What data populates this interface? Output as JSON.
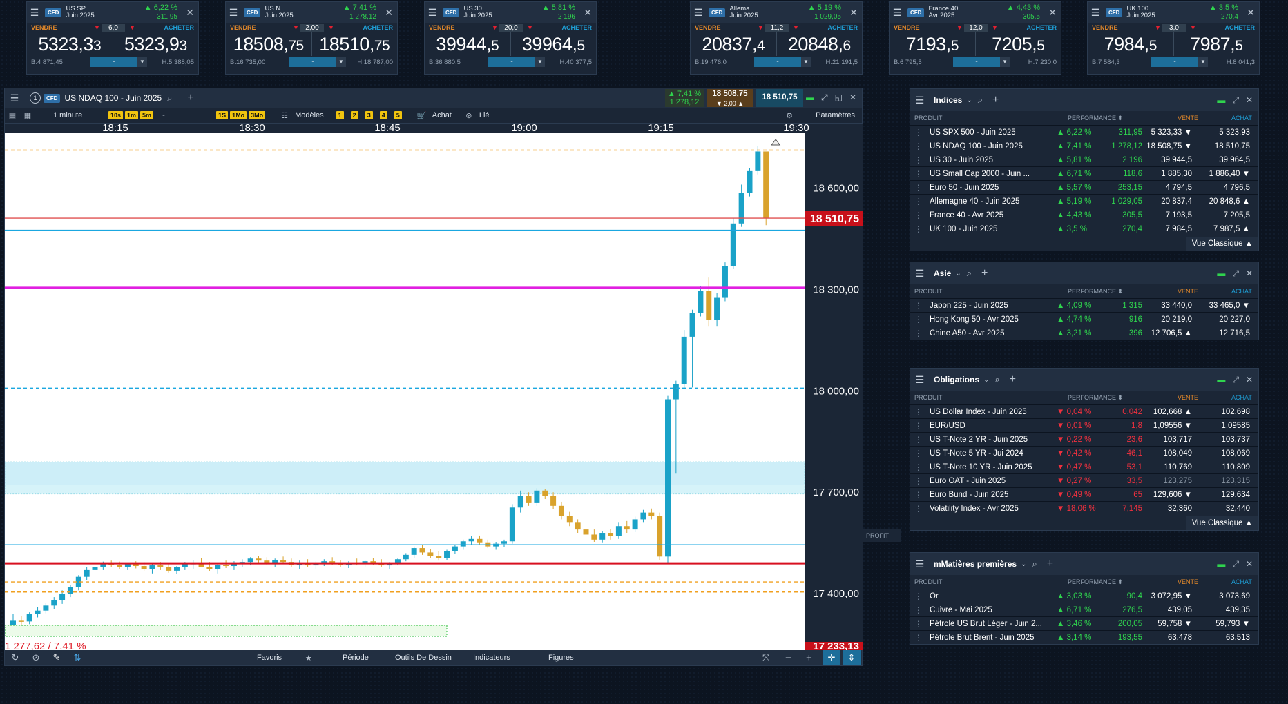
{
  "tiles": [
    {
      "name1": "US SP...",
      "name2": "Juin 2025",
      "pct": "▲ 6,22 %",
      "pts": "311,95",
      "spread": "6,0",
      "sell_main": "5323,3",
      "sell_small": "3",
      "buy_main": "5323,9",
      "buy_small": "3",
      "low": "B:4 871,45",
      "high": "H:5 388,05"
    },
    {
      "name1": "US N...",
      "name2": "Juin 2025",
      "pct": "▲ 7,41 %",
      "pts": "1 278,12",
      "spread": "2,00",
      "sell_main": "18508,",
      "sell_small": "75",
      "buy_main": "18510,",
      "buy_small": "75",
      "low": "B:16 735,00",
      "high": "H:18 787,00"
    },
    {
      "name1": "US 30",
      "name2": "Juin 2025",
      "pct": "▲ 5,81 %",
      "pts": "2 196",
      "spread": "20,0",
      "sell_main": "39944,",
      "sell_small": "5",
      "buy_main": "39964,",
      "buy_small": "5",
      "low": "B:36 880,5",
      "high": "H:40 377,5"
    },
    {
      "name1": "Allema...",
      "name2": "Juin 2025",
      "pct": "▲ 5,19 %",
      "pts": "1 029,05",
      "spread": "11,2",
      "sell_main": "20837,",
      "sell_small": "4",
      "buy_main": "20848,",
      "buy_small": "6",
      "low": "B:19 476,0",
      "high": "H:21 191,5"
    },
    {
      "name1": "France 40",
      "name2": "Avr 2025",
      "pct": "▲ 4,43 %",
      "pts": "305,5",
      "spread": "12,0",
      "sell_main": "7193,",
      "sell_small": "5",
      "buy_main": "7205,",
      "buy_small": "5",
      "low": "B:6 795,5",
      "high": "H:7 230,0"
    },
    {
      "name1": "UK 100",
      "name2": "Juin 2025",
      "pct": "▲ 3,5 %",
      "pts": "270,4",
      "spread": "3,0",
      "sell_main": "7984,",
      "sell_small": "5",
      "buy_main": "7987,",
      "buy_small": "5",
      "low": "B:7 584,3",
      "high": "H:8 041,3"
    }
  ],
  "labels": {
    "cfd": "CFD",
    "vendre": "VENDRE",
    "acheter": "ACHETER",
    "qty": "-",
    "produit": "PRODUIT",
    "performance": "PERFORMANCE",
    "vente": "VENTE",
    "achat": "ACHAT",
    "vue_classique": "Vue Classique",
    "profit": "PROFIT"
  },
  "chart": {
    "number": "1",
    "title": "US NDAQ 100 - Juin 2025",
    "perf_pct": "▲ 7,41 %",
    "perf_pts": "1 278,12",
    "sell": "18 508,75",
    "spread": "▼ 2,00 ▲",
    "buy": "18 510,75",
    "interval": "1 minute",
    "quick_intervals": [
      "10s",
      "1m",
      "5m"
    ],
    "range_buttons": [
      "1S",
      "1Mo",
      "3Mo"
    ],
    "modeles": "Modèles",
    "layouts": [
      "1",
      "2",
      "3",
      "4",
      "5"
    ],
    "achat": "Achat",
    "lie": "Lié",
    "parametres": "Paramètres",
    "footer": {
      "favoris": "Favoris",
      "periode": "Période",
      "outils": "Outils De Dessin",
      "indicateurs": "Indicateurs",
      "figures": "Figures"
    },
    "bottom_left_label": "1 277,62 / 7,41 %",
    "bottom_right_label": "17 233,13",
    "current_price_label": "18 510,75"
  },
  "chart_data": {
    "type": "candlestick",
    "x_ticks": [
      "18:15",
      "18:30",
      "18:45",
      "19:00",
      "19:15",
      "19:30"
    ],
    "y_ticks": [
      "18 600,00",
      "18 300,00",
      "18 000,00",
      "17 700,00",
      "17 400,00"
    ],
    "y_tick_values": [
      18600,
      18300,
      18000,
      17700,
      17400
    ],
    "ylim": [
      17233,
      18762
    ],
    "current_price": 18510.75,
    "levels": [
      {
        "value": 18712,
        "style": "dashed",
        "color": "#f0a020"
      },
      {
        "value": 18510.75,
        "style": "solid",
        "color": "#e05050"
      },
      {
        "value": 18475,
        "style": "solid",
        "color": "#1aa7e0"
      },
      {
        "value": 18305,
        "style": "thick",
        "color": "#e020e0"
      },
      {
        "value": 18008,
        "style": "dashed",
        "color": "#1aa7e0"
      },
      {
        "value": 17545,
        "style": "solid",
        "color": "#1aa7e0"
      },
      {
        "value": 17490,
        "style": "thick",
        "color": "#d81020"
      },
      {
        "value": 17435,
        "style": "dashed",
        "color": "#f0a020"
      },
      {
        "value": 17405,
        "style": "dashed",
        "color": "#f0a020"
      }
    ],
    "zones": [
      {
        "from": 17705,
        "to": 17790,
        "color": "#cdeef8"
      },
      {
        "from": 17695,
        "to": 17722,
        "color": "#d6f3f9"
      }
    ],
    "candles": [
      [
        17305,
        17340,
        17290,
        17320
      ],
      [
        17320,
        17335,
        17305,
        17318
      ],
      [
        17318,
        17345,
        17310,
        17340
      ],
      [
        17340,
        17360,
        17330,
        17350
      ],
      [
        17350,
        17372,
        17342,
        17365
      ],
      [
        17365,
        17390,
        17355,
        17380
      ],
      [
        17380,
        17410,
        17370,
        17400
      ],
      [
        17400,
        17425,
        17390,
        17420
      ],
      [
        17420,
        17455,
        17410,
        17450
      ],
      [
        17450,
        17478,
        17440,
        17470
      ],
      [
        17470,
        17490,
        17455,
        17480
      ],
      [
        17480,
        17495,
        17470,
        17488
      ],
      [
        17488,
        17498,
        17478,
        17485
      ],
      [
        17485,
        17495,
        17472,
        17480
      ],
      [
        17480,
        17492,
        17470,
        17488
      ],
      [
        17488,
        17496,
        17475,
        17482
      ],
      [
        17482,
        17494,
        17468,
        17472
      ],
      [
        17472,
        17488,
        17460,
        17484
      ],
      [
        17484,
        17494,
        17470,
        17478
      ],
      [
        17478,
        17490,
        17462,
        17468
      ],
      [
        17468,
        17482,
        17458,
        17478
      ],
      [
        17478,
        17494,
        17470,
        17488
      ],
      [
        17488,
        17500,
        17474,
        17490
      ],
      [
        17490,
        17505,
        17478,
        17480
      ],
      [
        17480,
        17494,
        17466,
        17472
      ],
      [
        17472,
        17488,
        17460,
        17486
      ],
      [
        17486,
        17498,
        17476,
        17482
      ],
      [
        17482,
        17496,
        17470,
        17490
      ],
      [
        17490,
        17502,
        17480,
        17494
      ],
      [
        17494,
        17508,
        17484,
        17504
      ],
      [
        17504,
        17512,
        17492,
        17498
      ],
      [
        17498,
        17508,
        17486,
        17492
      ],
      [
        17492,
        17504,
        17480,
        17500
      ],
      [
        17500,
        17510,
        17488,
        17494
      ],
      [
        17494,
        17504,
        17480,
        17486
      ],
      [
        17486,
        17498,
        17474,
        17492
      ],
      [
        17492,
        17502,
        17480,
        17484
      ],
      [
        17484,
        17496,
        17472,
        17490
      ],
      [
        17490,
        17502,
        17482,
        17496
      ],
      [
        17496,
        17508,
        17486,
        17490
      ],
      [
        17490,
        17500,
        17478,
        17486
      ],
      [
        17486,
        17496,
        17476,
        17492
      ],
      [
        17492,
        17504,
        17484,
        17488
      ],
      [
        17488,
        17500,
        17480,
        17496
      ],
      [
        17496,
        17506,
        17486,
        17492
      ],
      [
        17492,
        17502,
        17480,
        17484
      ],
      [
        17484,
        17494,
        17474,
        17490
      ],
      [
        17490,
        17504,
        17484,
        17502
      ],
      [
        17502,
        17520,
        17496,
        17515
      ],
      [
        17515,
        17540,
        17505,
        17535
      ],
      [
        17535,
        17545,
        17515,
        17522
      ],
      [
        17522,
        17532,
        17505,
        17512
      ],
      [
        17512,
        17525,
        17498,
        17505
      ],
      [
        17505,
        17530,
        17500,
        17525
      ],
      [
        17525,
        17545,
        17518,
        17540
      ],
      [
        17540,
        17560,
        17530,
        17555
      ],
      [
        17555,
        17570,
        17545,
        17562
      ],
      [
        17562,
        17572,
        17545,
        17550
      ],
      [
        17550,
        17560,
        17535,
        17540
      ],
      [
        17540,
        17552,
        17530,
        17548
      ],
      [
        17548,
        17560,
        17538,
        17555
      ],
      [
        17555,
        17665,
        17548,
        17655
      ],
      [
        17655,
        17705,
        17640,
        17690
      ],
      [
        17690,
        17700,
        17660,
        17668
      ],
      [
        17668,
        17712,
        17660,
        17705
      ],
      [
        17705,
        17710,
        17680,
        17690
      ],
      [
        17690,
        17700,
        17650,
        17660
      ],
      [
        17660,
        17672,
        17620,
        17630
      ],
      [
        17630,
        17642,
        17600,
        17610
      ],
      [
        17610,
        17620,
        17580,
        17590
      ],
      [
        17590,
        17605,
        17565,
        17575
      ],
      [
        17575,
        17590,
        17552,
        17560
      ],
      [
        17560,
        17585,
        17550,
        17580
      ],
      [
        17580,
        17592,
        17560,
        17570
      ],
      [
        17570,
        17610,
        17562,
        17600
      ],
      [
        17600,
        17615,
        17580,
        17590
      ],
      [
        17590,
        17628,
        17582,
        17620
      ],
      [
        17620,
        17648,
        17610,
        17640
      ],
      [
        17640,
        17652,
        17620,
        17630
      ],
      [
        17630,
        17640,
        17500,
        17510
      ],
      [
        17510,
        17985,
        17490,
        17975
      ],
      [
        17975,
        18030,
        17755,
        18020
      ],
      [
        18020,
        18180,
        18005,
        18160
      ],
      [
        18160,
        18240,
        18010,
        18230
      ],
      [
        18230,
        18310,
        18220,
        18295
      ],
      [
        18295,
        18335,
        18190,
        18210
      ],
      [
        18210,
        18290,
        18190,
        18275
      ],
      [
        18275,
        18380,
        18265,
        18370
      ],
      [
        18370,
        18510,
        18360,
        18495
      ],
      [
        18495,
        18610,
        18485,
        18585
      ],
      [
        18585,
        18660,
        18575,
        18650
      ],
      [
        18650,
        18725,
        18640,
        18708
      ],
      [
        18708,
        18700,
        18490,
        18510
      ]
    ]
  },
  "panels": [
    {
      "name": "Indices",
      "show_foot": true,
      "rows": [
        {
          "name": "US SPX 500 - Juin 2025",
          "dir": "up",
          "pct": "▲ 6,22 %",
          "pts": "311,95",
          "sell": "5 323,33 ▼",
          "buy": "5 323,93"
        },
        {
          "name": "US NDAQ 100 - Juin 2025",
          "dir": "up",
          "pct": "▲ 7,41 %",
          "pts": "1 278,12",
          "sell": "18 508,75 ▼",
          "buy": "18 510,75"
        },
        {
          "name": "US 30 - Juin 2025",
          "dir": "up",
          "pct": "▲ 5,81 %",
          "pts": "2 196",
          "sell": "39 944,5",
          "buy": "39 964,5"
        },
        {
          "name": "US Small Cap 2000 - Juin ...",
          "dir": "up",
          "pct": "▲ 6,71 %",
          "pts": "118,6",
          "sell": "1 885,30",
          "buy": "1 886,40 ▼"
        },
        {
          "name": "Euro 50 - Juin 2025",
          "dir": "up",
          "pct": "▲ 5,57 %",
          "pts": "253,15",
          "sell": "4 794,5",
          "buy": "4 796,5"
        },
        {
          "name": "Allemagne 40 - Juin 2025",
          "dir": "up",
          "pct": "▲ 5,19 %",
          "pts": "1 029,05",
          "sell": "20 837,4",
          "buy": "20 848,6 ▲"
        },
        {
          "name": "France 40 - Avr 2025",
          "dir": "up",
          "pct": "▲ 4,43 %",
          "pts": "305,5",
          "sell": "7 193,5",
          "buy": "7 205,5"
        },
        {
          "name": "UK 100 - Juin 2025",
          "dir": "up",
          "pct": "▲ 3,5 %",
          "pts": "270,4",
          "sell": "7 984,5",
          "buy": "7 987,5 ▲"
        }
      ]
    },
    {
      "name": "Asie",
      "show_foot": false,
      "rows": [
        {
          "name": "Japon 225 - Juin 2025",
          "dir": "up",
          "pct": "▲ 4,09 %",
          "pts": "1 315",
          "sell": "33 440,0",
          "buy": "33 465,0 ▼"
        },
        {
          "name": "Hong Kong 50 - Avr 2025",
          "dir": "up",
          "pct": "▲ 4,74 %",
          "pts": "916",
          "sell": "20 219,0",
          "buy": "20 227,0"
        },
        {
          "name": "Chine A50 - Avr 2025",
          "dir": "up",
          "pct": "▲ 3,21 %",
          "pts": "396",
          "sell": "12 706,5 ▲",
          "buy": "12 716,5"
        }
      ]
    },
    {
      "name": "Obligations",
      "show_foot": true,
      "rows": [
        {
          "name": "US Dollar Index - Juin 2025",
          "dir": "dn",
          "pct": "▼ 0,04 %",
          "pts": "0,042",
          "sell": "102,668 ▲",
          "buy": "102,698"
        },
        {
          "name": "EUR/USD",
          "dir": "dn",
          "pct": "▼ 0,01 %",
          "pts": "1,8",
          "sell": "1,09556 ▼",
          "buy": "1,09585"
        },
        {
          "name": "US T-Note 2 YR - Juin 2025",
          "dir": "dn",
          "pct": "▼ 0,22 %",
          "pts": "23,6",
          "sell": "103,717",
          "buy": "103,737"
        },
        {
          "name": "US T-Note 5 YR - Jui 2024",
          "dir": "dn",
          "pct": "▼ 0,42 %",
          "pts": "46,1",
          "sell": "108,049",
          "buy": "108,069"
        },
        {
          "name": "US T-Note 10 YR - Juin 2025",
          "dir": "dn",
          "pct": "▼ 0,47 %",
          "pts": "53,1",
          "sell": "110,769",
          "buy": "110,809"
        },
        {
          "name": "Euro OAT - Juin 2025",
          "dir": "dn",
          "pct": "▼ 0,27 %",
          "pts": "33,5",
          "sell": "123,275",
          "buy": "123,315",
          "grey": true
        },
        {
          "name": "Euro Bund - Juin 2025",
          "dir": "dn",
          "pct": "▼ 0,49 %",
          "pts": "65",
          "sell": "129,606 ▼",
          "buy": "129,634"
        },
        {
          "name": "Volatility Index - Avr 2025",
          "dir": "dn",
          "pct": "▼ 18,06 %",
          "pts": "7,145",
          "sell": "32,360",
          "buy": "32,440"
        }
      ]
    },
    {
      "name": "mMatières premières",
      "show_foot": false,
      "rows": [
        {
          "name": "Or",
          "dir": "up",
          "pct": "▲ 3,03 %",
          "pts": "90,4",
          "sell": "3 072,95 ▼",
          "buy": "3 073,69"
        },
        {
          "name": "Cuivre - Mai 2025",
          "dir": "up",
          "pct": "▲ 6,71 %",
          "pts": "276,5",
          "sell": "439,05",
          "buy": "439,35"
        },
        {
          "name": "Pétrole US Brut Léger - Juin 2...",
          "dir": "up",
          "pct": "▲ 3,46 %",
          "pts": "200,05",
          "sell": "59,758 ▼",
          "buy": "59,793 ▼"
        },
        {
          "name": "Pétrole Brut Brent - Juin 2025",
          "dir": "up",
          "pct": "▲ 3,14 %",
          "pts": "193,55",
          "sell": "63,478",
          "buy": "63,513"
        }
      ]
    }
  ]
}
